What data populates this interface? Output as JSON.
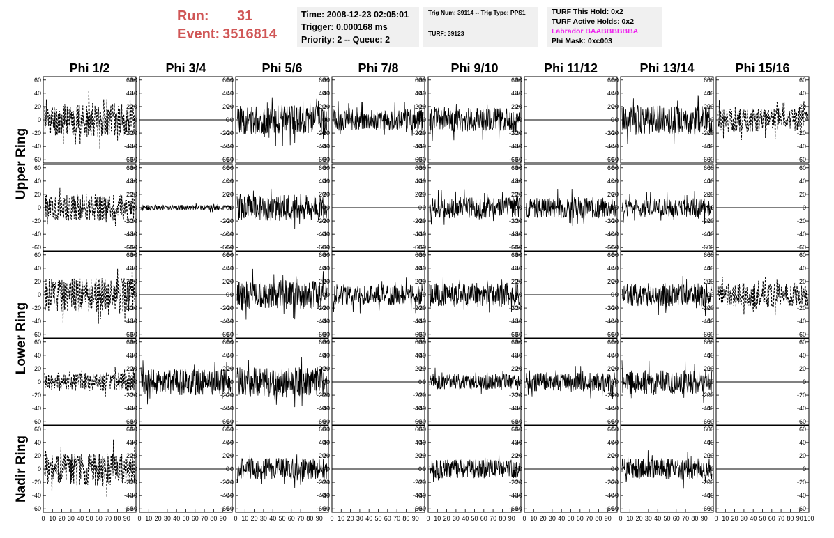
{
  "header": {
    "run_label": "Run:",
    "run_value": "31",
    "event_label": "Event:",
    "event_value": "3516814",
    "time_line": "Time: 2008-12-23 02:05:01",
    "trigger_line": "Trigger: 0.000168 ms",
    "priority_line": "Priority: 2 -- Queue: 2",
    "trig_line": "Trig Num: 39114 -- Trig Type: PPS1",
    "turf_line": "TURF: 39123",
    "turf_hold_line": "TURF This Hold: 0x2",
    "turf_active_line": "TURF Active Holds: 0x2",
    "labrador_line": "Labrador BAABBBBBBA",
    "phi_mask_line": "Phi Mask: 0xc003",
    "labrador_color": "#ee22ee",
    "run_color": "#d05656"
  },
  "chart_data": {
    "type": "line",
    "columns": [
      "Phi 1/2",
      "Phi 3/4",
      "Phi 5/6",
      "Phi 7/8",
      "Phi 9/10",
      "Phi 11/12",
      "Phi 13/14",
      "Phi 15/16"
    ],
    "rows": [
      "Upper Ring",
      "Upper Ring",
      "Lower Ring",
      "Lower Ring",
      "Nadir Ring"
    ],
    "row_groups": [
      {
        "label": "Upper Ring",
        "rows": [
          0,
          1
        ]
      },
      {
        "label": "Lower Ring",
        "rows": [
          2,
          3
        ]
      },
      {
        "label": "Nadir Ring",
        "rows": [
          4
        ]
      }
    ],
    "ylim": [
      -65,
      65
    ],
    "xlim": [
      0,
      100
    ],
    "y_ticks": [
      "60",
      "40",
      "20",
      "0",
      "-20",
      "-40",
      "-60"
    ],
    "y_tick_values": [
      60,
      40,
      20,
      0,
      -20,
      -40,
      -60
    ],
    "x_ticks": [
      "0",
      "10",
      "20",
      "30",
      "40",
      "50",
      "60",
      "70",
      "80",
      "90",
      "100"
    ],
    "x_tick_values": [
      0,
      10,
      20,
      30,
      40,
      50,
      60,
      70,
      80,
      90,
      100
    ],
    "panels": [
      [
        {
          "style": "dashed",
          "amp": 25,
          "seed": 11
        },
        {
          "style": "flat",
          "amp": 0,
          "seed": 12
        },
        {
          "style": "solid",
          "amp": 22,
          "seed": 13
        },
        {
          "style": "solid",
          "amp": 16,
          "seed": 14
        },
        {
          "style": "solid",
          "amp": 18,
          "seed": 15
        },
        {
          "style": "flat",
          "amp": 0,
          "seed": 16
        },
        {
          "style": "solid",
          "amp": 22,
          "seed": 17
        },
        {
          "style": "dashed",
          "amp": 18,
          "seed": 18
        }
      ],
      [
        {
          "style": "dashed",
          "amp": 20,
          "seed": 21
        },
        {
          "style": "solid",
          "amp": 4,
          "seed": 22
        },
        {
          "style": "solid",
          "amp": 20,
          "seed": 23
        },
        {
          "style": "flat",
          "amp": 0,
          "seed": 24
        },
        {
          "style": "solid",
          "amp": 16,
          "seed": 25
        },
        {
          "style": "solid",
          "amp": 16,
          "seed": 26
        },
        {
          "style": "solid",
          "amp": 14,
          "seed": 27
        },
        {
          "style": "flat",
          "amp": 0,
          "seed": 28
        }
      ],
      [
        {
          "style": "dashed",
          "amp": 25,
          "seed": 31
        },
        {
          "style": "flat",
          "amp": 0,
          "seed": 32
        },
        {
          "style": "solid",
          "amp": 22,
          "seed": 33
        },
        {
          "style": "solid",
          "amp": 16,
          "seed": 34
        },
        {
          "style": "solid",
          "amp": 18,
          "seed": 35
        },
        {
          "style": "flat",
          "amp": 0,
          "seed": 36
        },
        {
          "style": "solid",
          "amp": 18,
          "seed": 37
        },
        {
          "style": "dashed",
          "amp": 18,
          "seed": 38
        }
      ],
      [
        {
          "style": "dashed",
          "amp": 14,
          "seed": 41
        },
        {
          "style": "solid",
          "amp": 20,
          "seed": 42
        },
        {
          "style": "solid",
          "amp": 22,
          "seed": 43
        },
        {
          "style": "flat",
          "amp": 0,
          "seed": 44
        },
        {
          "style": "solid",
          "amp": 12,
          "seed": 45
        },
        {
          "style": "solid",
          "amp": 14,
          "seed": 46
        },
        {
          "style": "solid",
          "amp": 18,
          "seed": 47
        },
        {
          "style": "flat",
          "amp": 0,
          "seed": 48
        }
      ],
      [
        {
          "style": "dashed",
          "amp": 25,
          "seed": 51
        },
        {
          "style": "flat",
          "amp": 0,
          "seed": 52
        },
        {
          "style": "solid",
          "amp": 16,
          "seed": 53
        },
        {
          "style": "flat",
          "amp": 0,
          "seed": 54
        },
        {
          "style": "solid",
          "amp": 14,
          "seed": 55
        },
        {
          "style": "flat",
          "amp": 0,
          "seed": 56
        },
        {
          "style": "solid",
          "amp": 16,
          "seed": 57
        },
        {
          "style": "flat",
          "amp": 0,
          "seed": 58
        }
      ]
    ]
  }
}
